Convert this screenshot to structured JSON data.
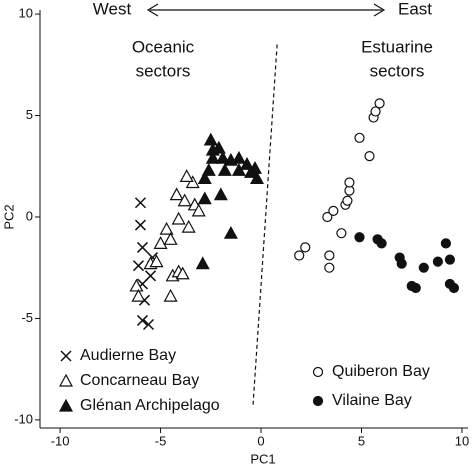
{
  "chart_data": {
    "type": "scatter",
    "x_label": "PC1",
    "y_label": "PC2",
    "annotations": [
      "West",
      "East",
      "Oceanic",
      "sectors",
      "Estuarine",
      "sectors"
    ],
    "divider": {
      "x": [
        0.8,
        -0.4
      ],
      "y": [
        8.5,
        -9.3
      ]
    },
    "xlim": [
      -11,
      10.3
    ],
    "ylim": [
      -10.4,
      10.2
    ],
    "xticks": [
      -10,
      -5,
      0,
      5,
      10
    ],
    "yticks": [
      -10,
      -5,
      0,
      5,
      10
    ],
    "grid": false,
    "series": [
      {
        "name": "Audierne Bay",
        "color": "#111111",
        "marker": "x",
        "legend": "lower left",
        "x": [
          -6.0,
          -6.0,
          -5.9,
          -6.1,
          -5.9,
          -5.8,
          -5.9,
          -5.6,
          -5.5,
          -5.4
        ],
        "values": [
          0.7,
          -0.4,
          -1.5,
          -2.4,
          -3.3,
          -4.1,
          -5.1,
          -5.3,
          -2.9,
          -2.0
        ]
      },
      {
        "name": "Concarneau Bay",
        "color": "#111111",
        "marker": "triangle-open",
        "legend": "lower left",
        "x": [
          -6.2,
          -6.1,
          -5.5,
          -5.2,
          -5.0,
          -4.7,
          -4.5,
          -4.4,
          -4.1,
          -3.9,
          -3.6,
          -4.1,
          -4.2,
          -3.8,
          -3.4,
          -3.7,
          -3.3,
          -3.1,
          -4.5
        ],
        "values": [
          -3.4,
          -3.9,
          -2.3,
          -2.2,
          -1.3,
          -0.6,
          -1.1,
          -2.9,
          -2.7,
          -2.8,
          -0.5,
          -0.1,
          1.1,
          0.8,
          1.7,
          2.0,
          0.6,
          0.3,
          -3.9
        ]
      },
      {
        "name": "Glénan Archipelago",
        "color": "#111111",
        "marker": "triangle",
        "legend": "lower left",
        "x": [
          -2.5,
          -2.4,
          -2.1,
          -2.4,
          -1.9,
          -1.5,
          -1.1,
          -0.7,
          -0.3,
          -2.6,
          -2.8,
          -1.8,
          -1.1,
          -0.5,
          -0.2,
          -2.8,
          -2.0,
          -1.5,
          -2.9
        ],
        "values": [
          3.8,
          3.3,
          3.4,
          2.9,
          2.9,
          2.8,
          2.9,
          2.6,
          2.4,
          2.3,
          1.9,
          2.3,
          2.3,
          2.2,
          1.9,
          0.9,
          1.1,
          -0.8,
          -2.3
        ]
      },
      {
        "name": "Quiberon Bay",
        "color": "#111111",
        "marker": "circle-open",
        "legend": "lower right",
        "x": [
          1.9,
          2.2,
          3.4,
          3.4,
          3.3,
          3.6,
          4.0,
          4.2,
          4.3,
          4.4,
          4.4,
          4.9,
          5.4,
          5.6,
          5.7,
          5.9
        ],
        "values": [
          -1.9,
          -1.5,
          -1.9,
          -2.5,
          0.0,
          0.3,
          -0.8,
          0.6,
          0.8,
          1.3,
          1.7,
          3.9,
          3.0,
          4.9,
          5.2,
          5.6
        ]
      },
      {
        "name": "Vilaine Bay",
        "color": "#111111",
        "marker": "circle",
        "legend": "lower right",
        "x": [
          4.9,
          5.8,
          6.0,
          6.9,
          7.0,
          8.1,
          7.5,
          7.7,
          8.8,
          9.2,
          9.4,
          9.4,
          9.6
        ],
        "values": [
          -1.0,
          -1.1,
          -1.3,
          -2.0,
          -2.3,
          -2.5,
          -3.4,
          -3.5,
          -2.2,
          -1.3,
          -2.1,
          -3.3,
          -3.5
        ]
      }
    ]
  }
}
